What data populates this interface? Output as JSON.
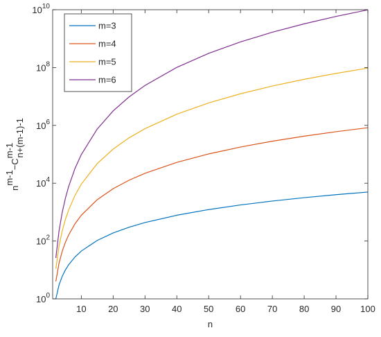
{
  "chart_data": {
    "type": "line",
    "x_label": "n",
    "y_label": {
      "base": "n",
      "sup": "m-1",
      "op": "−C",
      "sup2": "m-1",
      "sub": "n+(m-1)-1"
    },
    "x": [
      2,
      3,
      4,
      5,
      6,
      8,
      10,
      15,
      20,
      25,
      30,
      40,
      50,
      60,
      70,
      80,
      90,
      100
    ],
    "series": [
      {
        "name": "m=3",
        "color": "#0072bd",
        "values": [
          1,
          3,
          6,
          10,
          15,
          28,
          45,
          105,
          190,
          300,
          435,
          780,
          1225,
          1770,
          2415,
          3160,
          4005,
          4950
        ]
      },
      {
        "name": "m=4",
        "color": "#d95319",
        "values": [
          4,
          17,
          44,
          90,
          160,
          392,
          780,
          2695,
          6460,
          12700,
          22040,
          52520,
          102900,
          178180,
          283360,
          423440,
          603420,
          828300
        ]
      },
      {
        "name": "m=5",
        "color": "#edb120",
        "values": [
          11,
          66,
          221,
          555,
          1170,
          3766,
          9285,
          47565,
          151145,
          370150,
          769080,
          2436590,
          5957175,
          12364335,
          22921570,
          39122380,
          62690265,
          95578725
        ]
      },
      {
        "name": "m=6",
        "color": "#7e2f8e",
        "values": [
          26,
          222,
          968,
          2999,
          7524,
          31976,
          97998,
          747747,
          3157496,
          9646870,
          24021744,
          101313992,
          309337490,
          769975488,
          1664591236,
          3245927984,
          5850008982,
          9908037480
        ]
      }
    ],
    "xlim": [
      1,
      100
    ],
    "xticks": [
      10,
      20,
      30,
      40,
      50,
      60,
      70,
      80,
      90,
      100
    ],
    "ylim": [
      1,
      10000000000
    ],
    "yscale": "log",
    "yticks": [
      {
        "value": 1,
        "label": "10",
        "exponent": "0"
      },
      {
        "value": 100,
        "label": "10",
        "exponent": "2"
      },
      {
        "value": 10000,
        "label": "10",
        "exponent": "4"
      },
      {
        "value": 1000000,
        "label": "10",
        "exponent": "6"
      },
      {
        "value": 100000000,
        "label": "10",
        "exponent": "8"
      },
      {
        "value": 10000000000,
        "label": "10",
        "exponent": "10"
      }
    ],
    "legend": "upper left"
  }
}
